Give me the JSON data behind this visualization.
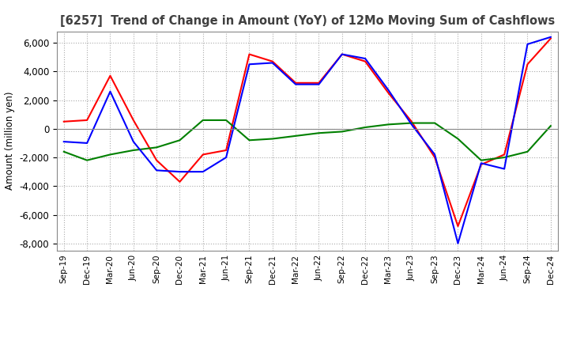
{
  "title": "[6257]  Trend of Change in Amount (YoY) of 12Mo Moving Sum of Cashflows",
  "ylabel": "Amount (million yen)",
  "ylim": [
    -8500,
    6800
  ],
  "yticks": [
    -8000,
    -6000,
    -4000,
    -2000,
    0,
    2000,
    4000,
    6000
  ],
  "x_labels": [
    "Sep-19",
    "Dec-19",
    "Mar-20",
    "Jun-20",
    "Sep-20",
    "Dec-20",
    "Mar-21",
    "Jun-21",
    "Sep-21",
    "Dec-21",
    "Mar-22",
    "Jun-22",
    "Sep-22",
    "Dec-22",
    "Mar-23",
    "Jun-23",
    "Sep-23",
    "Dec-23",
    "Mar-24",
    "Jun-24",
    "Sep-24",
    "Dec-24"
  ],
  "operating": [
    500,
    600,
    3700,
    600,
    -2200,
    -3700,
    -1800,
    -1500,
    5200,
    4700,
    3200,
    3200,
    5200,
    4700,
    2500,
    500,
    -2000,
    -6800,
    -2500,
    -1800,
    4500,
    6300
  ],
  "investing": [
    -1600,
    -2200,
    -1800,
    -1500,
    -1300,
    -800,
    600,
    600,
    -800,
    -700,
    -500,
    -300,
    -200,
    100,
    300,
    400,
    400,
    -700,
    -2200,
    -2000,
    -1600,
    200
  ],
  "free": [
    -900,
    -1000,
    2600,
    -900,
    -2900,
    -3000,
    -3000,
    -2000,
    4500,
    4600,
    3100,
    3100,
    5200,
    4900,
    2700,
    300,
    -1800,
    -8000,
    -2400,
    -2800,
    5900,
    6400
  ],
  "operating_color": "#FF0000",
  "investing_color": "#008000",
  "free_color": "#0000FF",
  "background_color": "#FFFFFF",
  "grid_color": "#AAAAAA",
  "title_color": "#404040"
}
